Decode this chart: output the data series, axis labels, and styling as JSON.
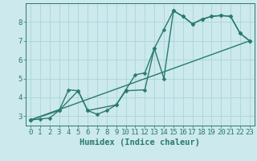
{
  "bg_color": "#cce9ed",
  "grid_color": "#a8d5da",
  "line_color": "#2a7a6e",
  "line_width": 1.0,
  "marker": "D",
  "marker_size": 2.5,
  "xlabel": "Humidex (Indice chaleur)",
  "xlabel_fontsize": 7.5,
  "tick_fontsize": 6.5,
  "xlim": [
    -0.5,
    23.5
  ],
  "ylim": [
    2.5,
    9.0
  ],
  "yticks": [
    3,
    4,
    5,
    6,
    7,
    8
  ],
  "xticks": [
    0,
    1,
    2,
    3,
    4,
    5,
    6,
    7,
    8,
    9,
    10,
    11,
    12,
    13,
    14,
    15,
    16,
    17,
    18,
    19,
    20,
    21,
    22,
    23
  ],
  "series": [
    {
      "x": [
        0,
        1,
        2,
        3,
        4,
        5,
        6,
        7,
        8,
        9,
        10,
        11,
        12,
        13,
        14,
        15,
        16,
        17,
        18,
        19,
        20,
        21,
        22,
        23
      ],
      "y": [
        2.8,
        2.85,
        2.9,
        3.3,
        4.4,
        4.35,
        3.3,
        3.1,
        3.3,
        3.6,
        4.4,
        5.2,
        5.3,
        6.6,
        7.6,
        8.6,
        8.3,
        7.9,
        8.15,
        8.3,
        8.35,
        8.3,
        7.4,
        7.0
      ]
    },
    {
      "x": [
        0,
        3,
        5,
        6,
        9,
        10,
        12,
        13,
        14,
        15,
        16,
        17,
        18,
        19,
        20,
        21,
        22,
        23
      ],
      "y": [
        2.8,
        3.3,
        4.35,
        3.3,
        3.6,
        4.35,
        4.4,
        6.6,
        5.0,
        8.6,
        8.3,
        7.9,
        8.15,
        8.3,
        8.35,
        8.3,
        7.4,
        7.0
      ]
    },
    {
      "x": [
        0,
        23
      ],
      "y": [
        2.8,
        7.0
      ]
    }
  ]
}
